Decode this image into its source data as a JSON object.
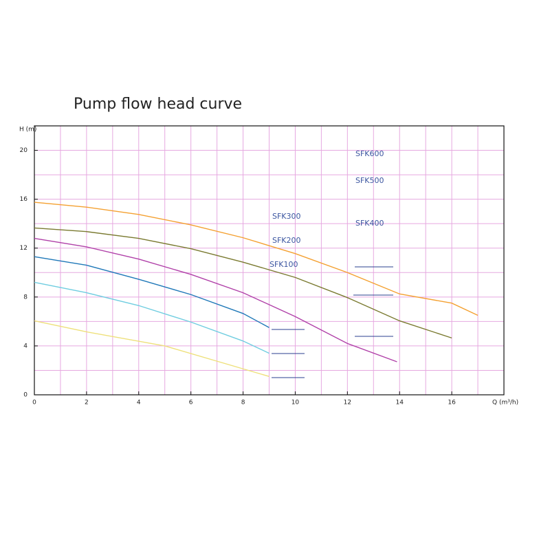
{
  "chart_data": {
    "type": "line",
    "title": "Pump flow head curve",
    "x_label": "Q (m³/h)",
    "y_label": "H (m)",
    "xlim": [
      0,
      18
    ],
    "ylim": [
      0,
      22
    ],
    "xticks": [
      0,
      2,
      4,
      6,
      8,
      10,
      12,
      14,
      16
    ],
    "yticks": [
      0,
      4,
      8,
      12,
      16,
      20
    ],
    "xgrid": [
      1,
      2,
      3,
      4,
      5,
      6,
      7,
      8,
      9,
      10,
      11,
      12,
      13,
      14,
      15,
      16,
      17
    ],
    "ygrid": [
      2,
      4,
      6,
      8,
      10,
      12,
      14,
      16,
      18,
      20
    ],
    "grid": true,
    "series": [
      {
        "name": "SFK100",
        "color": "#eee07a",
        "x": [
          0,
          2,
          5,
          7,
          9
        ],
        "values": [
          6.05,
          5.15,
          4.0,
          2.75,
          1.5
        ]
      },
      {
        "name": "SFK200",
        "color": "#6fcde0",
        "x": [
          0,
          2,
          4,
          6,
          8,
          9
        ],
        "values": [
          9.2,
          8.35,
          7.3,
          5.95,
          4.4,
          3.4
        ]
      },
      {
        "name": "SFK300",
        "color": "#1f78b8",
        "x": [
          0,
          2,
          4,
          6,
          8,
          9
        ],
        "values": [
          11.3,
          10.6,
          9.45,
          8.2,
          6.65,
          5.5
        ]
      },
      {
        "name": "SFK400",
        "color": "#b040a8",
        "x": [
          0,
          2,
          4,
          6,
          8,
          10,
          12,
          13.9
        ],
        "values": [
          12.8,
          12.1,
          11.1,
          9.85,
          8.35,
          6.4,
          4.2,
          2.7
        ]
      },
      {
        "name": "SFK500",
        "color": "#7a7a30",
        "x": [
          0,
          2,
          4,
          6,
          8,
          10,
          12,
          14,
          16
        ],
        "values": [
          13.65,
          13.35,
          12.8,
          11.95,
          10.85,
          9.6,
          7.95,
          6.05,
          4.65
        ]
      },
      {
        "name": "SFK600",
        "color": "#f4a030",
        "x": [
          0,
          2,
          4,
          6,
          8,
          10,
          12,
          14,
          16,
          17
        ],
        "values": [
          15.75,
          15.35,
          14.75,
          13.9,
          12.85,
          11.55,
          10.0,
          8.25,
          7.5,
          6.5
        ]
      }
    ]
  }
}
